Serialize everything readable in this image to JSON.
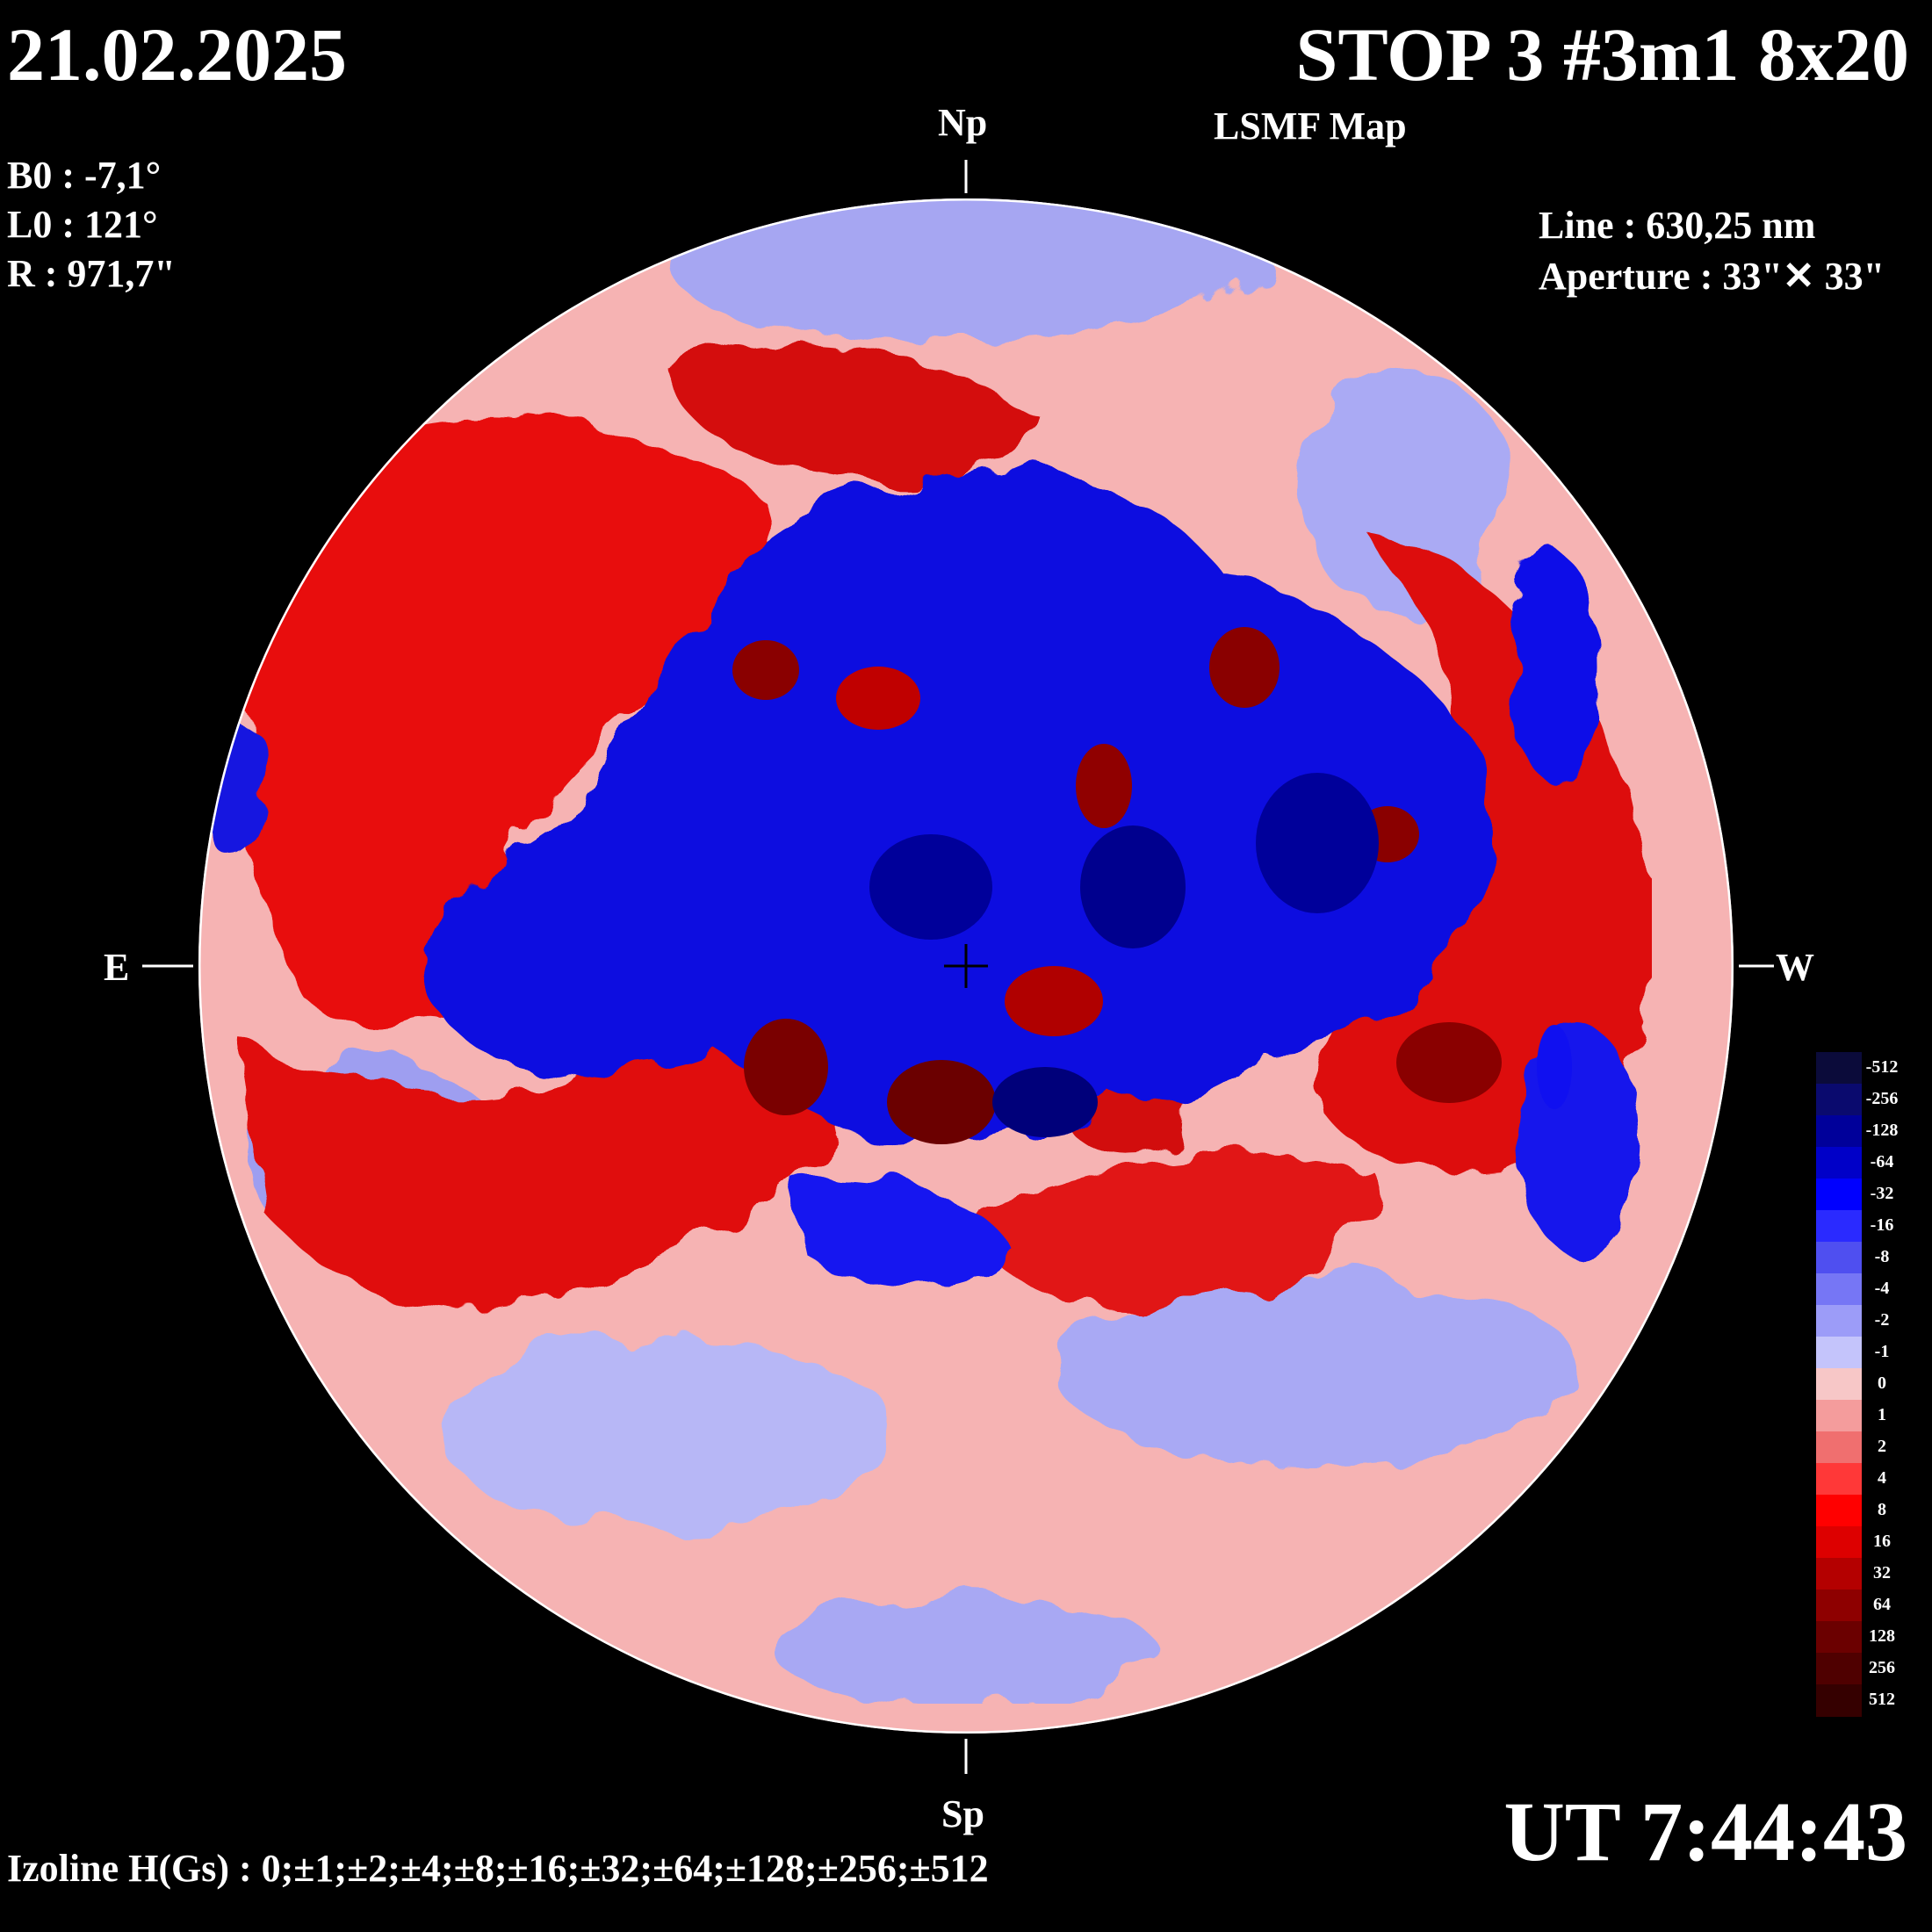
{
  "header": {
    "date": "21.02.2025",
    "title": "STOP 3 #3m1 8x20",
    "subtitle": "LSMF  Map"
  },
  "params": {
    "b0": "B0 : -7,1°",
    "l0": "L0 : 121°",
    "r": "R  : 971,7\""
  },
  "instrument": {
    "line": "Line :  630,25 nm",
    "aperture": "Aperture : 33\"✕ 33\""
  },
  "directions": {
    "north": "Np",
    "south": "Sp",
    "east": "E",
    "west": "W"
  },
  "footer": {
    "izoline": "Izoline H(Gs) : 0;±1;±2;±4;±8;±16;±32;±64;±128;±256;±512",
    "ut": "UT 7:44:43"
  },
  "colorbar": {
    "labels": [
      "-512",
      "-256",
      "-128",
      "-64",
      "-32",
      "-16",
      "-8",
      "-4",
      "-2",
      "-1",
      "0",
      "1",
      "2",
      "4",
      "8",
      "16",
      "32",
      "64",
      "128",
      "256",
      "512"
    ],
    "colors": [
      "#0b0b3a",
      "#0a0a6e",
      "#00009a",
      "#0000c8",
      "#0000ff",
      "#2a2aff",
      "#4f4ff0",
      "#7676f5",
      "#9c9cf8",
      "#c4c4fb",
      "#f7c7c7",
      "#f49c9c",
      "#f06f6f",
      "#ff3838",
      "#ff0000",
      "#dd0000",
      "#b40000",
      "#8e0000",
      "#6b0000",
      "#4f0000",
      "#350000"
    ]
  },
  "colors": {
    "strong_positive": "#cc0000",
    "weak_positive": "#f4a0a0",
    "strong_negative": "#0000d0",
    "weak_negative": "#a8a8f4"
  }
}
